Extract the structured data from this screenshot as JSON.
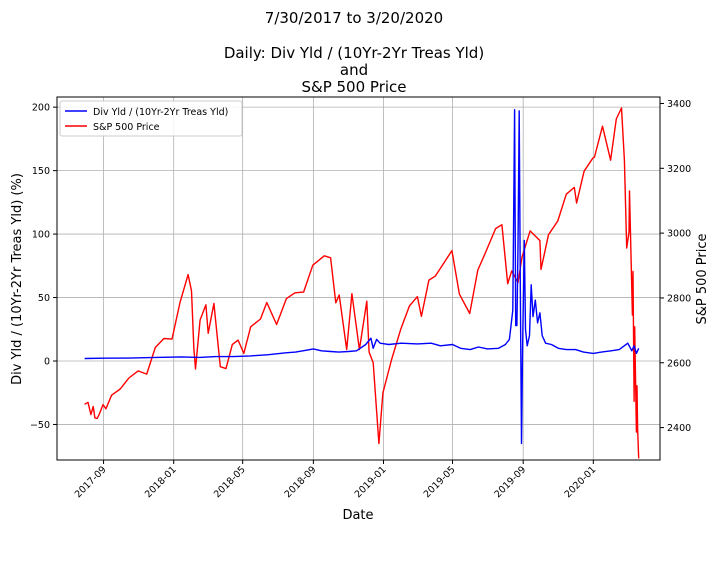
{
  "chart_data": {
    "type": "line",
    "title_lines": [
      "7/30/2017 to 3/20/2020",
      "",
      "Daily: Div Yld / (10Yr-2Yr Treas Yld)",
      "and",
      "S&P 500 Price"
    ],
    "xlabel": "Date",
    "ylabel_left": "Div Yld / (10Yr-2Yr Treas Yld) (%)",
    "ylabel_right": "S&P 500 Price",
    "x_ticks": [
      "2017-09",
      "2018-01",
      "2018-05",
      "2018-09",
      "2019-01",
      "2019-05",
      "2019-09",
      "2020-01"
    ],
    "y_left_ticks": [
      -50,
      0,
      50,
      100,
      150,
      200
    ],
    "y_right_ticks": [
      2400,
      2600,
      2800,
      3000,
      3200,
      3400
    ],
    "xlim": [
      "2017-06-12",
      "2020-04-26"
    ],
    "ylim_left": [
      -78,
      208
    ],
    "ylim_right": [
      2300,
      3420
    ],
    "grid": true,
    "legend_position": "upper left",
    "series": [
      {
        "name": "Div Yld / (10Yr-2Yr Treas Yld)",
        "axis": "left",
        "color": "#0000ff",
        "points": [
          [
            "2017-07-30",
            2
          ],
          [
            "2017-09-01",
            2.2
          ],
          [
            "2017-10-15",
            2.3
          ],
          [
            "2017-12-01",
            2.8
          ],
          [
            "2018-01-15",
            3.2
          ],
          [
            "2018-02-15",
            2.8
          ],
          [
            "2018-03-15",
            3.5
          ],
          [
            "2018-04-15",
            3.5
          ],
          [
            "2018-05-15",
            4
          ],
          [
            "2018-06-15",
            5
          ],
          [
            "2018-07-15",
            6.5
          ],
          [
            "2018-08-01",
            7
          ],
          [
            "2018-08-20",
            8.5
          ],
          [
            "2018-09-01",
            9.5
          ],
          [
            "2018-09-15",
            8
          ],
          [
            "2018-10-01",
            7.5
          ],
          [
            "2018-10-15",
            7
          ],
          [
            "2018-11-01",
            7.5
          ],
          [
            "2018-11-15",
            8
          ],
          [
            "2018-12-01",
            13
          ],
          [
            "2018-12-10",
            18
          ],
          [
            "2018-12-14",
            10
          ],
          [
            "2018-12-20",
            17
          ],
          [
            "2018-12-26",
            14
          ],
          [
            "2019-01-10",
            13
          ],
          [
            "2019-02-01",
            14
          ],
          [
            "2019-03-01",
            13.5
          ],
          [
            "2019-03-25",
            14
          ],
          [
            "2019-04-10",
            12
          ],
          [
            "2019-05-01",
            13
          ],
          [
            "2019-05-15",
            10
          ],
          [
            "2019-06-01",
            9
          ],
          [
            "2019-06-15",
            11
          ],
          [
            "2019-07-01",
            9.5
          ],
          [
            "2019-07-20",
            10
          ],
          [
            "2019-08-01",
            13
          ],
          [
            "2019-08-08",
            17
          ],
          [
            "2019-08-14",
            40
          ],
          [
            "2019-08-17",
            198
          ],
          [
            "2019-08-19",
            28
          ],
          [
            "2019-08-21",
            28
          ],
          [
            "2019-08-23",
            90
          ],
          [
            "2019-08-25",
            197
          ],
          [
            "2019-08-27",
            60
          ],
          [
            "2019-08-29",
            -65
          ],
          [
            "2019-08-31",
            10
          ],
          [
            "2019-09-03",
            95
          ],
          [
            "2019-09-05",
            25
          ],
          [
            "2019-09-08",
            12
          ],
          [
            "2019-09-12",
            20
          ],
          [
            "2019-09-15",
            60
          ],
          [
            "2019-09-18",
            35
          ],
          [
            "2019-09-22",
            48
          ],
          [
            "2019-09-26",
            30
          ],
          [
            "2019-09-30",
            38
          ],
          [
            "2019-10-04",
            20
          ],
          [
            "2019-10-10",
            14
          ],
          [
            "2019-10-20",
            13
          ],
          [
            "2019-11-01",
            10
          ],
          [
            "2019-11-15",
            9
          ],
          [
            "2019-12-01",
            9
          ],
          [
            "2019-12-15",
            7
          ],
          [
            "2020-01-01",
            6
          ],
          [
            "2020-01-15",
            7
          ],
          [
            "2020-02-01",
            8
          ],
          [
            "2020-02-15",
            9
          ],
          [
            "2020-03-01",
            14
          ],
          [
            "2020-03-08",
            8
          ],
          [
            "2020-03-12",
            12
          ],
          [
            "2020-03-16",
            6
          ],
          [
            "2020-03-20",
            10
          ]
        ]
      },
      {
        "name": "S&P 500 Price",
        "axis": "right",
        "color": "#ff0000",
        "points": [
          [
            "2017-07-30",
            2472
          ],
          [
            "2017-08-05",
            2478
          ],
          [
            "2017-08-10",
            2440
          ],
          [
            "2017-08-14",
            2465
          ],
          [
            "2017-08-17",
            2430
          ],
          [
            "2017-08-21",
            2428
          ],
          [
            "2017-08-25",
            2443
          ],
          [
            "2017-08-31",
            2471
          ],
          [
            "2017-09-05",
            2458
          ],
          [
            "2017-09-15",
            2500
          ],
          [
            "2017-09-30",
            2519
          ],
          [
            "2017-10-15",
            2553
          ],
          [
            "2017-10-31",
            2575
          ],
          [
            "2017-11-15",
            2565
          ],
          [
            "2017-11-30",
            2647
          ],
          [
            "2017-12-15",
            2675
          ],
          [
            "2017-12-29",
            2673
          ],
          [
            "2018-01-12",
            2786
          ],
          [
            "2018-01-26",
            2872
          ],
          [
            "2018-02-01",
            2822
          ],
          [
            "2018-02-05",
            2648
          ],
          [
            "2018-02-08",
            2581
          ],
          [
            "2018-02-16",
            2732
          ],
          [
            "2018-02-26",
            2779
          ],
          [
            "2018-03-02",
            2691
          ],
          [
            "2018-03-12",
            2783
          ],
          [
            "2018-03-23",
            2588
          ],
          [
            "2018-04-02",
            2582
          ],
          [
            "2018-04-13",
            2656
          ],
          [
            "2018-04-23",
            2670
          ],
          [
            "2018-05-03",
            2629
          ],
          [
            "2018-05-15",
            2711
          ],
          [
            "2018-06-01",
            2735
          ],
          [
            "2018-06-12",
            2786
          ],
          [
            "2018-06-29",
            2718
          ],
          [
            "2018-07-16",
            2798
          ],
          [
            "2018-07-31",
            2816
          ],
          [
            "2018-08-15",
            2818
          ],
          [
            "2018-08-31",
            2901
          ],
          [
            "2018-09-20",
            2930
          ],
          [
            "2018-10-01",
            2924
          ],
          [
            "2018-10-10",
            2785
          ],
          [
            "2018-10-16",
            2809
          ],
          [
            "2018-10-29",
            2641
          ],
          [
            "2018-11-07",
            2813
          ],
          [
            "2018-11-20",
            2641
          ],
          [
            "2018-12-03",
            2790
          ],
          [
            "2018-12-07",
            2633
          ],
          [
            "2018-12-14",
            2600
          ],
          [
            "2018-12-24",
            2351
          ],
          [
            "2018-12-31",
            2507
          ],
          [
            "2019-01-15",
            2610
          ],
          [
            "2019-01-31",
            2704
          ],
          [
            "2019-02-15",
            2775
          ],
          [
            "2019-03-01",
            2804
          ],
          [
            "2019-03-08",
            2743
          ],
          [
            "2019-03-21",
            2855
          ],
          [
            "2019-04-01",
            2867
          ],
          [
            "2019-04-15",
            2905
          ],
          [
            "2019-04-30",
            2946
          ],
          [
            "2019-05-13",
            2812
          ],
          [
            "2019-05-31",
            2752
          ],
          [
            "2019-06-14",
            2886
          ],
          [
            "2019-06-28",
            2942
          ],
          [
            "2019-07-15",
            3014
          ],
          [
            "2019-07-26",
            3026
          ],
          [
            "2019-08-05",
            2844
          ],
          [
            "2019-08-12",
            2883
          ],
          [
            "2019-08-23",
            2847
          ],
          [
            "2019-08-30",
            2926
          ],
          [
            "2019-09-13",
            3007
          ],
          [
            "2019-09-30",
            2977
          ],
          [
            "2019-10-02",
            2888
          ],
          [
            "2019-10-15",
            2995
          ],
          [
            "2019-10-31",
            3037
          ],
          [
            "2019-11-15",
            3120
          ],
          [
            "2019-11-29",
            3141
          ],
          [
            "2019-12-03",
            3093
          ],
          [
            "2019-12-16",
            3191
          ],
          [
            "2019-12-31",
            3231
          ],
          [
            "2020-01-03",
            3235
          ],
          [
            "2020-01-17",
            3330
          ],
          [
            "2020-01-31",
            3225
          ],
          [
            "2020-02-10",
            3352
          ],
          [
            "2020-02-19",
            3386
          ],
          [
            "2020-02-24",
            3225
          ],
          [
            "2020-02-28",
            2954
          ],
          [
            "2020-03-03",
            3003
          ],
          [
            "2020-03-04",
            3130
          ],
          [
            "2020-03-06",
            2972
          ],
          [
            "2020-03-09",
            2747
          ],
          [
            "2020-03-10",
            2882
          ],
          [
            "2020-03-12",
            2481
          ],
          [
            "2020-03-13",
            2711
          ],
          [
            "2020-03-16",
            2386
          ],
          [
            "2020-03-17",
            2529
          ],
          [
            "2020-03-18",
            2398
          ],
          [
            "2020-03-20",
            2305
          ]
        ]
      }
    ]
  }
}
